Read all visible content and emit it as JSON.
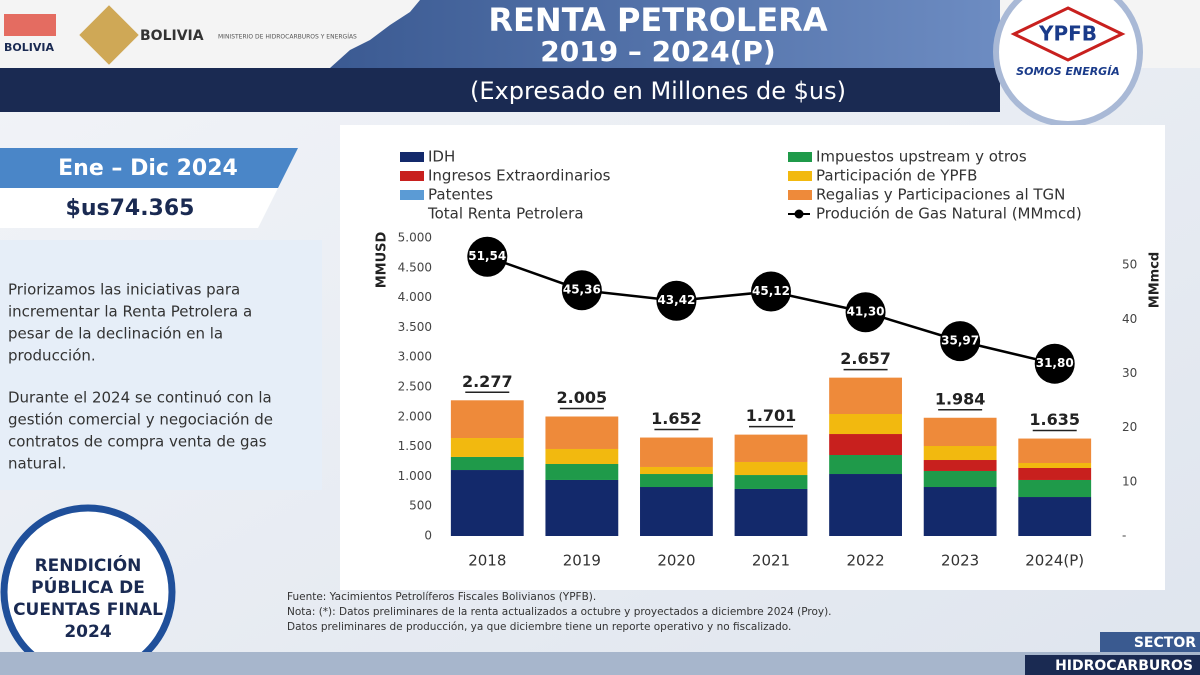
{
  "header": {
    "title": "RENTA PETROLERA",
    "period": "2019 – 2024(P)",
    "subtitle": "(Expresado en Millones de $us)",
    "logo_left": "BOLIVIA",
    "logo_state": "BOLIVIA",
    "logo_ministry": "MINISTERIO DE HIDROCARBUROS Y ENERGÍAS",
    "logo_ypfb": "YPFB",
    "ypfb_slogan": "SOMOS ENERGÍA"
  },
  "sidebar": {
    "period": "Ene – Dic 2024",
    "amount": "$us74.365",
    "paragraphs": [
      [
        "Priorizamos las iniciativas para",
        "incrementar la Renta Petrolera a",
        "pesar de la declinación en la",
        "producción."
      ],
      [
        "Durante el 2024 se continuó con la",
        "gestión comercial y negociación de",
        "contratos de compra venta de gas",
        "natural."
      ]
    ],
    "badge": [
      "RENDICIÓN",
      "PÚBLICA DE",
      "CUENTAS FINAL",
      "2024"
    ]
  },
  "footer": {
    "notes": [
      "Fuente: Yacimientos Petrolíferos Fiscales Bolivianos (YPFB).",
      "Nota: (*): Datos preliminares de la renta actualizados a octubre y proyectados a diciembre 2024 (Proy).",
      "Datos preliminares de producción, ya que diciembre tiene un reporte operativo y no fiscalizado."
    ],
    "sector": "SECTOR",
    "area": "HIDROCARBUROS"
  },
  "chart_data": {
    "type": "bar",
    "stacked": true,
    "categories": [
      "2018",
      "2019",
      "2020",
      "2021",
      "2022",
      "2023",
      "2024(P)"
    ],
    "ylabel": "MMUSD",
    "y2label": "MMmcd",
    "ylim": [
      0,
      5000
    ],
    "yticks": [
      0,
      {
        "value": 500,
        "label": "500"
      },
      {
        "value": 1000,
        "label": "1.000"
      },
      {
        "value": 1500,
        "label": "1.500"
      },
      {
        "value": 2000,
        "label": "2.000"
      },
      {
        "value": 2500,
        "label": "2.500"
      },
      {
        "value": 3000,
        "label": "3.000"
      },
      {
        "value": 3500,
        "label": "3.500"
      },
      {
        "value": 4000,
        "label": "4.000"
      },
      {
        "value": 4500,
        "label": "4.500"
      },
      {
        "value": 5000,
        "label": "5.000"
      }
    ],
    "y2lim": [
      0,
      55
    ],
    "y2ticks": [
      {
        "value": 0,
        "label": "-"
      },
      10,
      20,
      30,
      40,
      50
    ],
    "series": [
      {
        "name": "IDH",
        "color": "#13296b",
        "values": [
          1107,
          940,
          822,
          789,
          1040,
          822,
          654
        ]
      },
      {
        "name": "Impuestos upstream y otros",
        "color": "#1f9a4a",
        "values": [
          219,
          268,
          218,
          234,
          319,
          269,
          286
        ]
      },
      {
        "name": "Ingresos Extraordinarios",
        "color": "#c8201e",
        "values": [
          0,
          0,
          0,
          0,
          352,
          184,
          201
        ]
      },
      {
        "name": "Participación de YPFB",
        "color": "#f2b90f",
        "values": [
          318,
          252,
          118,
          219,
          336,
          235,
          84
        ]
      },
      {
        "name": "Regalias y Participaciones al TGN",
        "color": "#ee8a3a",
        "values": [
          633,
          545,
          494,
          459,
          610,
          474,
          410
        ]
      },
      {
        "name": "Patentes",
        "color": "#5b9bd5",
        "values": [
          0,
          0,
          0,
          0,
          0,
          0,
          0
        ]
      },
      {
        "name": "Produción de Gas Natural (MMmcd)",
        "type": "line",
        "axis": "y2",
        "color": "#000000",
        "values": [
          51.54,
          45.36,
          43.42,
          45.12,
          41.3,
          35.97,
          31.8
        ],
        "value_labels": [
          "51,54",
          "45,36",
          "43,42",
          "45,12",
          "41,30",
          "35,97",
          "31,80"
        ]
      }
    ],
    "totals": {
      "name": "Total Renta Petrolera",
      "values": [
        2277,
        2005,
        1652,
        1701,
        2657,
        1984,
        1635
      ],
      "value_labels": [
        "2.277",
        "2.005",
        "1.652",
        "1.701",
        "2.657",
        "1.984",
        "1.635"
      ]
    }
  }
}
